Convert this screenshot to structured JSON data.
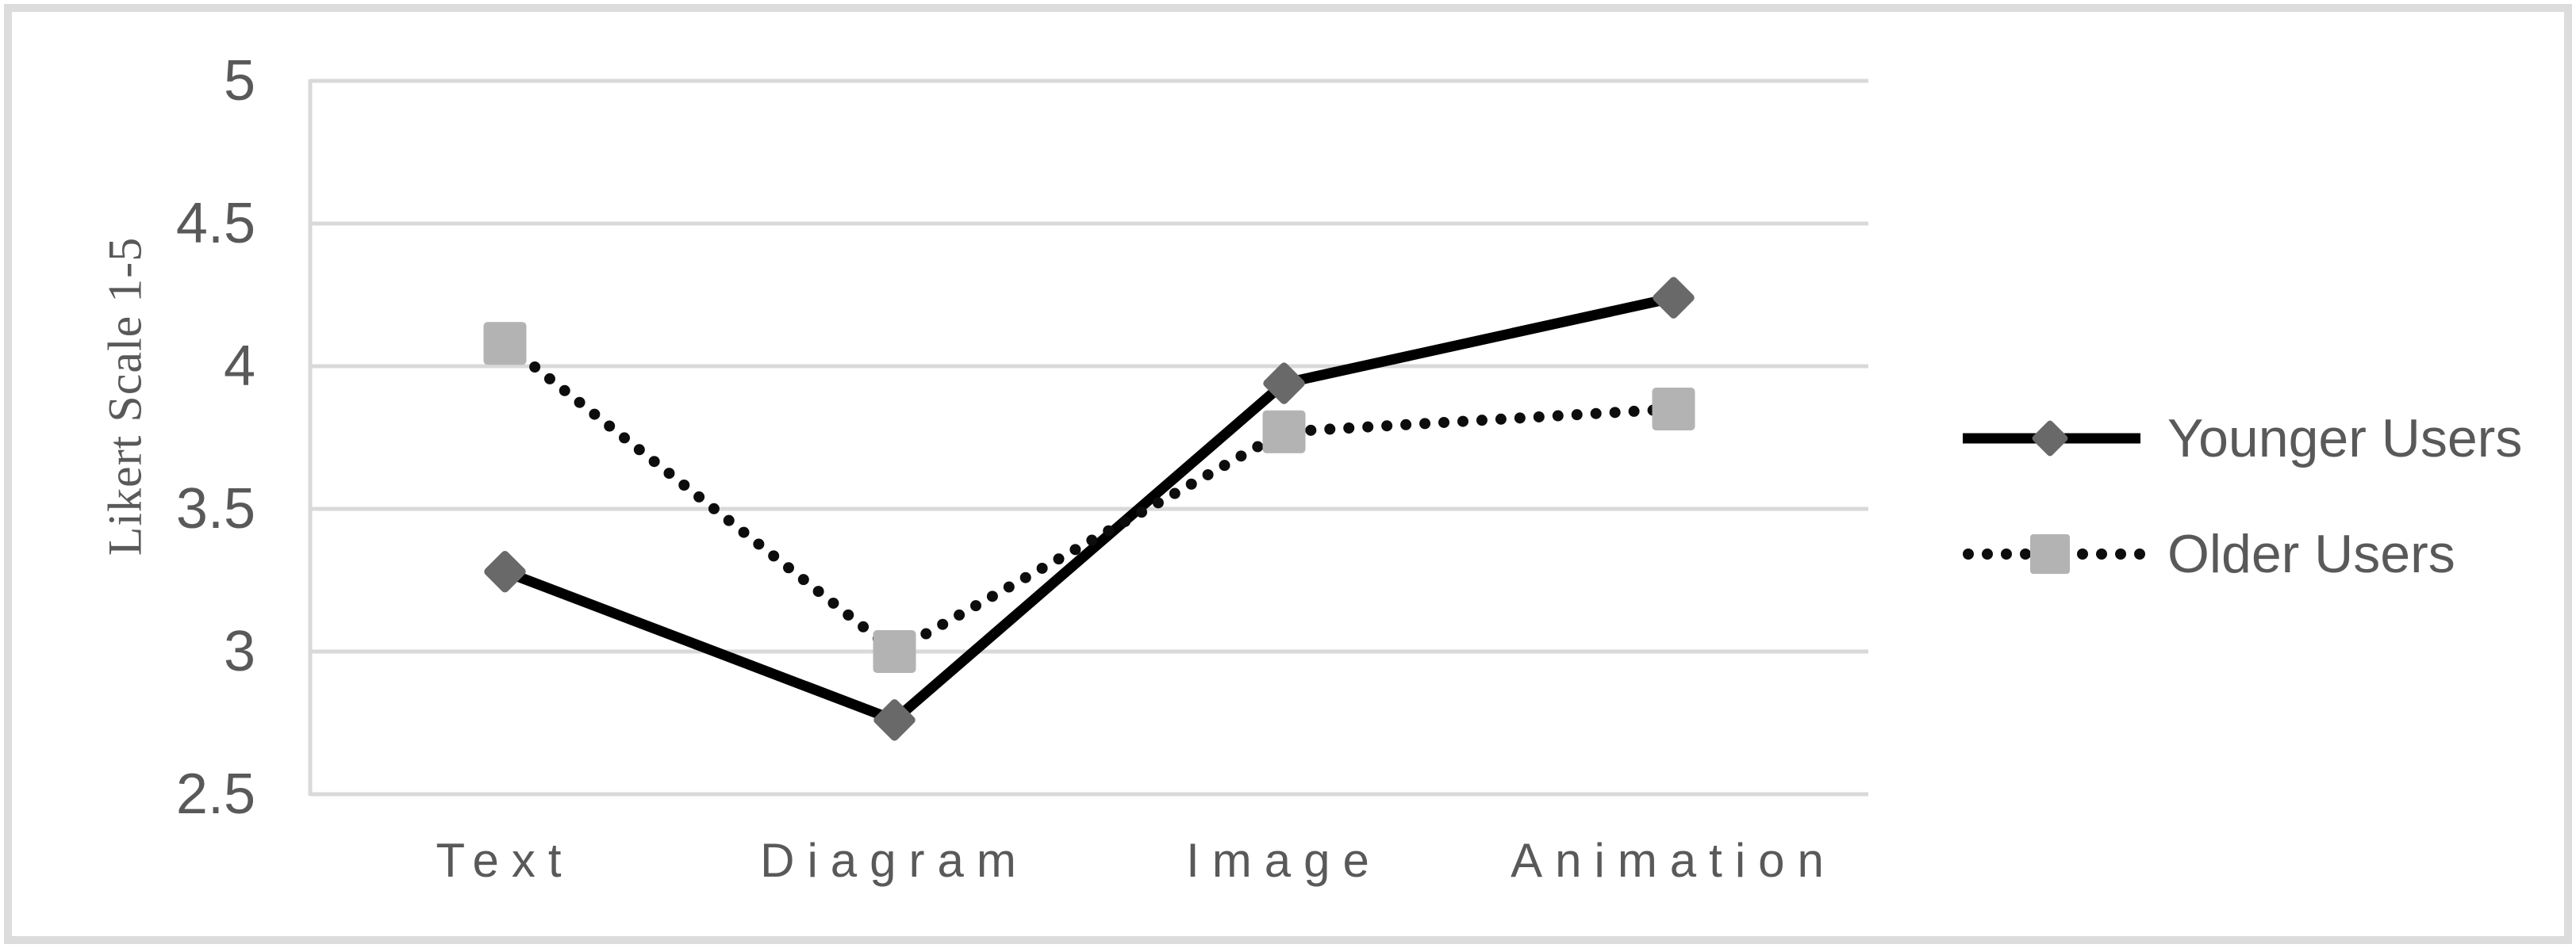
{
  "chart_data": {
    "type": "line",
    "title": "",
    "xlabel": "",
    "ylabel": "Likert Scale 1-5",
    "categories": [
      "Text",
      "Diagram",
      "Image",
      "Animation"
    ],
    "series": [
      {
        "name": "Younger Users",
        "values": [
          3.28,
          2.76,
          3.94,
          4.24
        ],
        "line_style": "solid",
        "line_color": "#000000",
        "marker": "diamond",
        "marker_color": "#696969"
      },
      {
        "name": "Older Users",
        "values": [
          4.08,
          3.0,
          3.77,
          3.85
        ],
        "line_style": "dotted",
        "line_color": "#0d0d0d",
        "marker": "square",
        "marker_color": "#b3b3b3"
      }
    ],
    "ylim": [
      2.5,
      5
    ],
    "yticks": [
      5,
      4.5,
      4,
      3.5,
      3,
      2.5
    ],
    "ytick_labels": [
      "5",
      "4.5",
      "4",
      "3.5",
      "3",
      "2.5"
    ],
    "grid": "horizontal",
    "gridline_color": "#d9d9d9",
    "axis_line_color": "#d9d9d9",
    "text_color": "#595959",
    "legend_position": "right"
  }
}
